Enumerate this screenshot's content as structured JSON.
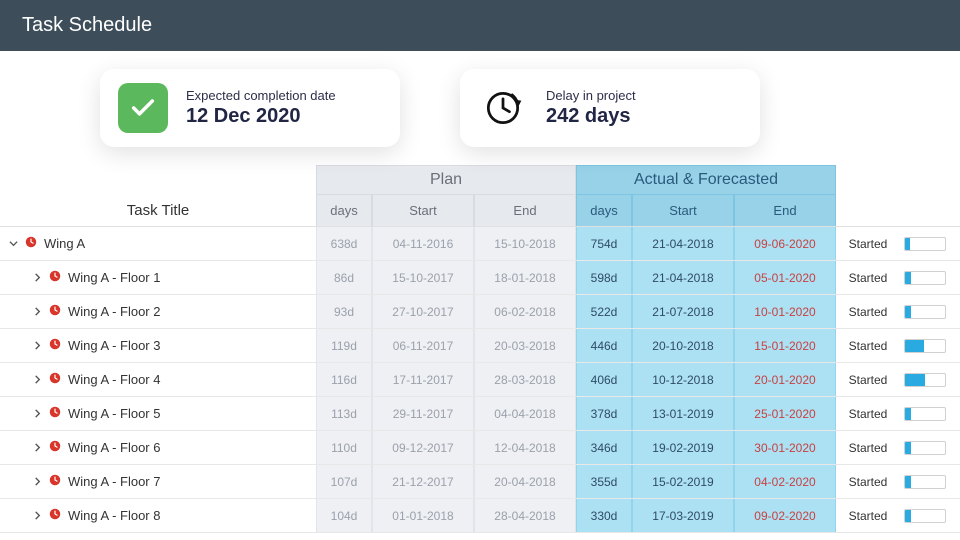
{
  "header": {
    "title": "Task Schedule"
  },
  "cards": {
    "completion": {
      "label": "Expected completion date",
      "value": "12 Dec 2020"
    },
    "delay": {
      "label": "Delay in project",
      "value": "242 days"
    }
  },
  "table": {
    "group_headers": {
      "plan": "Plan",
      "actual": "Actual & Forecasted"
    },
    "col_headers": {
      "title": "Task Title",
      "days": "days",
      "start": "Start",
      "end": "End"
    },
    "status_label": "Started",
    "rows": [
      {
        "level": 0,
        "expanded": true,
        "title": "Wing A",
        "plan_days": "638d",
        "plan_start": "04-11-2016",
        "plan_end": "15-10-2018",
        "act_days": "754d",
        "act_start": "21-04-2018",
        "act_end": "09-06-2020",
        "status": "Started",
        "progress": 12
      },
      {
        "level": 1,
        "expanded": false,
        "title": "Wing A - Floor 1",
        "plan_days": "86d",
        "plan_start": "15-10-2017",
        "plan_end": "18-01-2018",
        "act_days": "598d",
        "act_start": "21-04-2018",
        "act_end": "05-01-2020",
        "status": "Started",
        "progress": 14
      },
      {
        "level": 1,
        "expanded": false,
        "title": "Wing A - Floor 2",
        "plan_days": "93d",
        "plan_start": "27-10-2017",
        "plan_end": "06-02-2018",
        "act_days": "522d",
        "act_start": "21-07-2018",
        "act_end": "10-01-2020",
        "status": "Started",
        "progress": 16
      },
      {
        "level": 1,
        "expanded": false,
        "title": "Wing A - Floor 3",
        "plan_days": "119d",
        "plan_start": "06-11-2017",
        "plan_end": "20-03-2018",
        "act_days": "446d",
        "act_start": "20-10-2018",
        "act_end": "15-01-2020",
        "status": "Started",
        "progress": 48
      },
      {
        "level": 1,
        "expanded": false,
        "title": "Wing A - Floor 4",
        "plan_days": "116d",
        "plan_start": "17-11-2017",
        "plan_end": "28-03-2018",
        "act_days": "406d",
        "act_start": "10-12-2018",
        "act_end": "20-01-2020",
        "status": "Started",
        "progress": 50
      },
      {
        "level": 1,
        "expanded": false,
        "title": "Wing A - Floor 5",
        "plan_days": "113d",
        "plan_start": "29-11-2017",
        "plan_end": "04-04-2018",
        "act_days": "378d",
        "act_start": "13-01-2019",
        "act_end": "25-01-2020",
        "status": "Started",
        "progress": 14
      },
      {
        "level": 1,
        "expanded": false,
        "title": "Wing A - Floor 6",
        "plan_days": "110d",
        "plan_start": "09-12-2017",
        "plan_end": "12-04-2018",
        "act_days": "346d",
        "act_start": "19-02-2019",
        "act_end": "30-01-2020",
        "status": "Started",
        "progress": 14
      },
      {
        "level": 1,
        "expanded": false,
        "title": "Wing A - Floor 7",
        "plan_days": "107d",
        "plan_start": "21-12-2017",
        "plan_end": "20-04-2018",
        "act_days": "355d",
        "act_start": "15-02-2019",
        "act_end": "04-02-2020",
        "status": "Started",
        "progress": 14
      },
      {
        "level": 1,
        "expanded": false,
        "title": "Wing A - Floor 8",
        "plan_days": "104d",
        "plan_start": "01-01-2018",
        "plan_end": "28-04-2018",
        "act_days": "330d",
        "act_start": "17-03-2019",
        "act_end": "09-02-2020",
        "status": "Started",
        "progress": 14
      }
    ]
  },
  "colors": {
    "header_bg": "#3d4e5a",
    "card_shadow": "rgba(0,0,0,0.12)",
    "green": "#5cb85c",
    "plan_bg": "#e6e9ee",
    "plan_text": "#9ba0ab",
    "actual_header_bg": "#97d2e9",
    "actual_cell_bg": "#ace0f3",
    "actual_text": "#2f4b66",
    "delay_red": "#c64242",
    "clock_red": "#d9362b",
    "bar_fill": "#29abe2"
  }
}
